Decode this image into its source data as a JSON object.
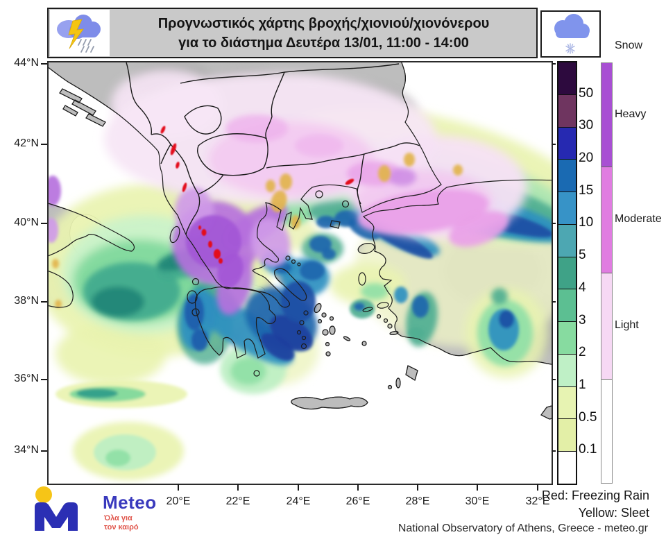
{
  "header": {
    "title_line1": "Προγνωστικός χάρτης βροχής/χιονιού/χιονόνερου",
    "title_line2": "για το διάστημα Δευτέρα 13/01, 11:00 - 14:00",
    "left_icon": "storm-cloud-lightning-rain",
    "right_icon": "snow-cloud-snowflake"
  },
  "axes": {
    "lat_labels": [
      "44°N",
      "42°N",
      "40°N",
      "38°N",
      "36°N",
      "34°N"
    ],
    "lon_labels": [
      "20°E",
      "22°E",
      "24°E",
      "26°E",
      "28°E",
      "30°E",
      "32°E"
    ]
  },
  "legend": {
    "rain": {
      "tick_values": [
        "50",
        "30",
        "20",
        "15",
        "10",
        "5",
        "4",
        "3",
        "2",
        "1",
        "0.5",
        "0.1"
      ],
      "segment_colors_top_to_bottom": [
        "#2d0a3e",
        "#6f3560",
        "#2629b1",
        "#1a6ab2",
        "#3793c7",
        "#4da7b2",
        "#3fa287",
        "#5cbf92",
        "#87dba0",
        "#bff0c6",
        "#e7f3b2",
        "#e3efa7",
        "#ffffff"
      ]
    },
    "snow": {
      "title": "Snow",
      "classes": [
        {
          "label": "Heavy",
          "color": "#a84fd3"
        },
        {
          "label": "Moderate",
          "color": "#e07ce1"
        },
        {
          "label": "Light",
          "color": "#f6d8f4"
        },
        {
          "label": "",
          "color": "#ffffff"
        }
      ]
    },
    "notes": {
      "freezing_rain": "Red: Freezing Rain",
      "sleet": "Yellow: Sleet"
    }
  },
  "footer": {
    "attribution": "National Observatory of Athens, Greece - meteo.gr"
  },
  "logo": {
    "brand": "Meteo",
    "tagline_line1": "Όλα για",
    "tagline_line2": "τον καιρό"
  },
  "map_colors": {
    "land": "#bdbdbd",
    "sea": "#ffffff",
    "freezing_rain": "#e30d1e",
    "sleet": "#e2b44c",
    "heavy_snow": "#a356d6",
    "moderate_snow": "#e9a0e8",
    "light_snow": "#f7e6f6"
  }
}
